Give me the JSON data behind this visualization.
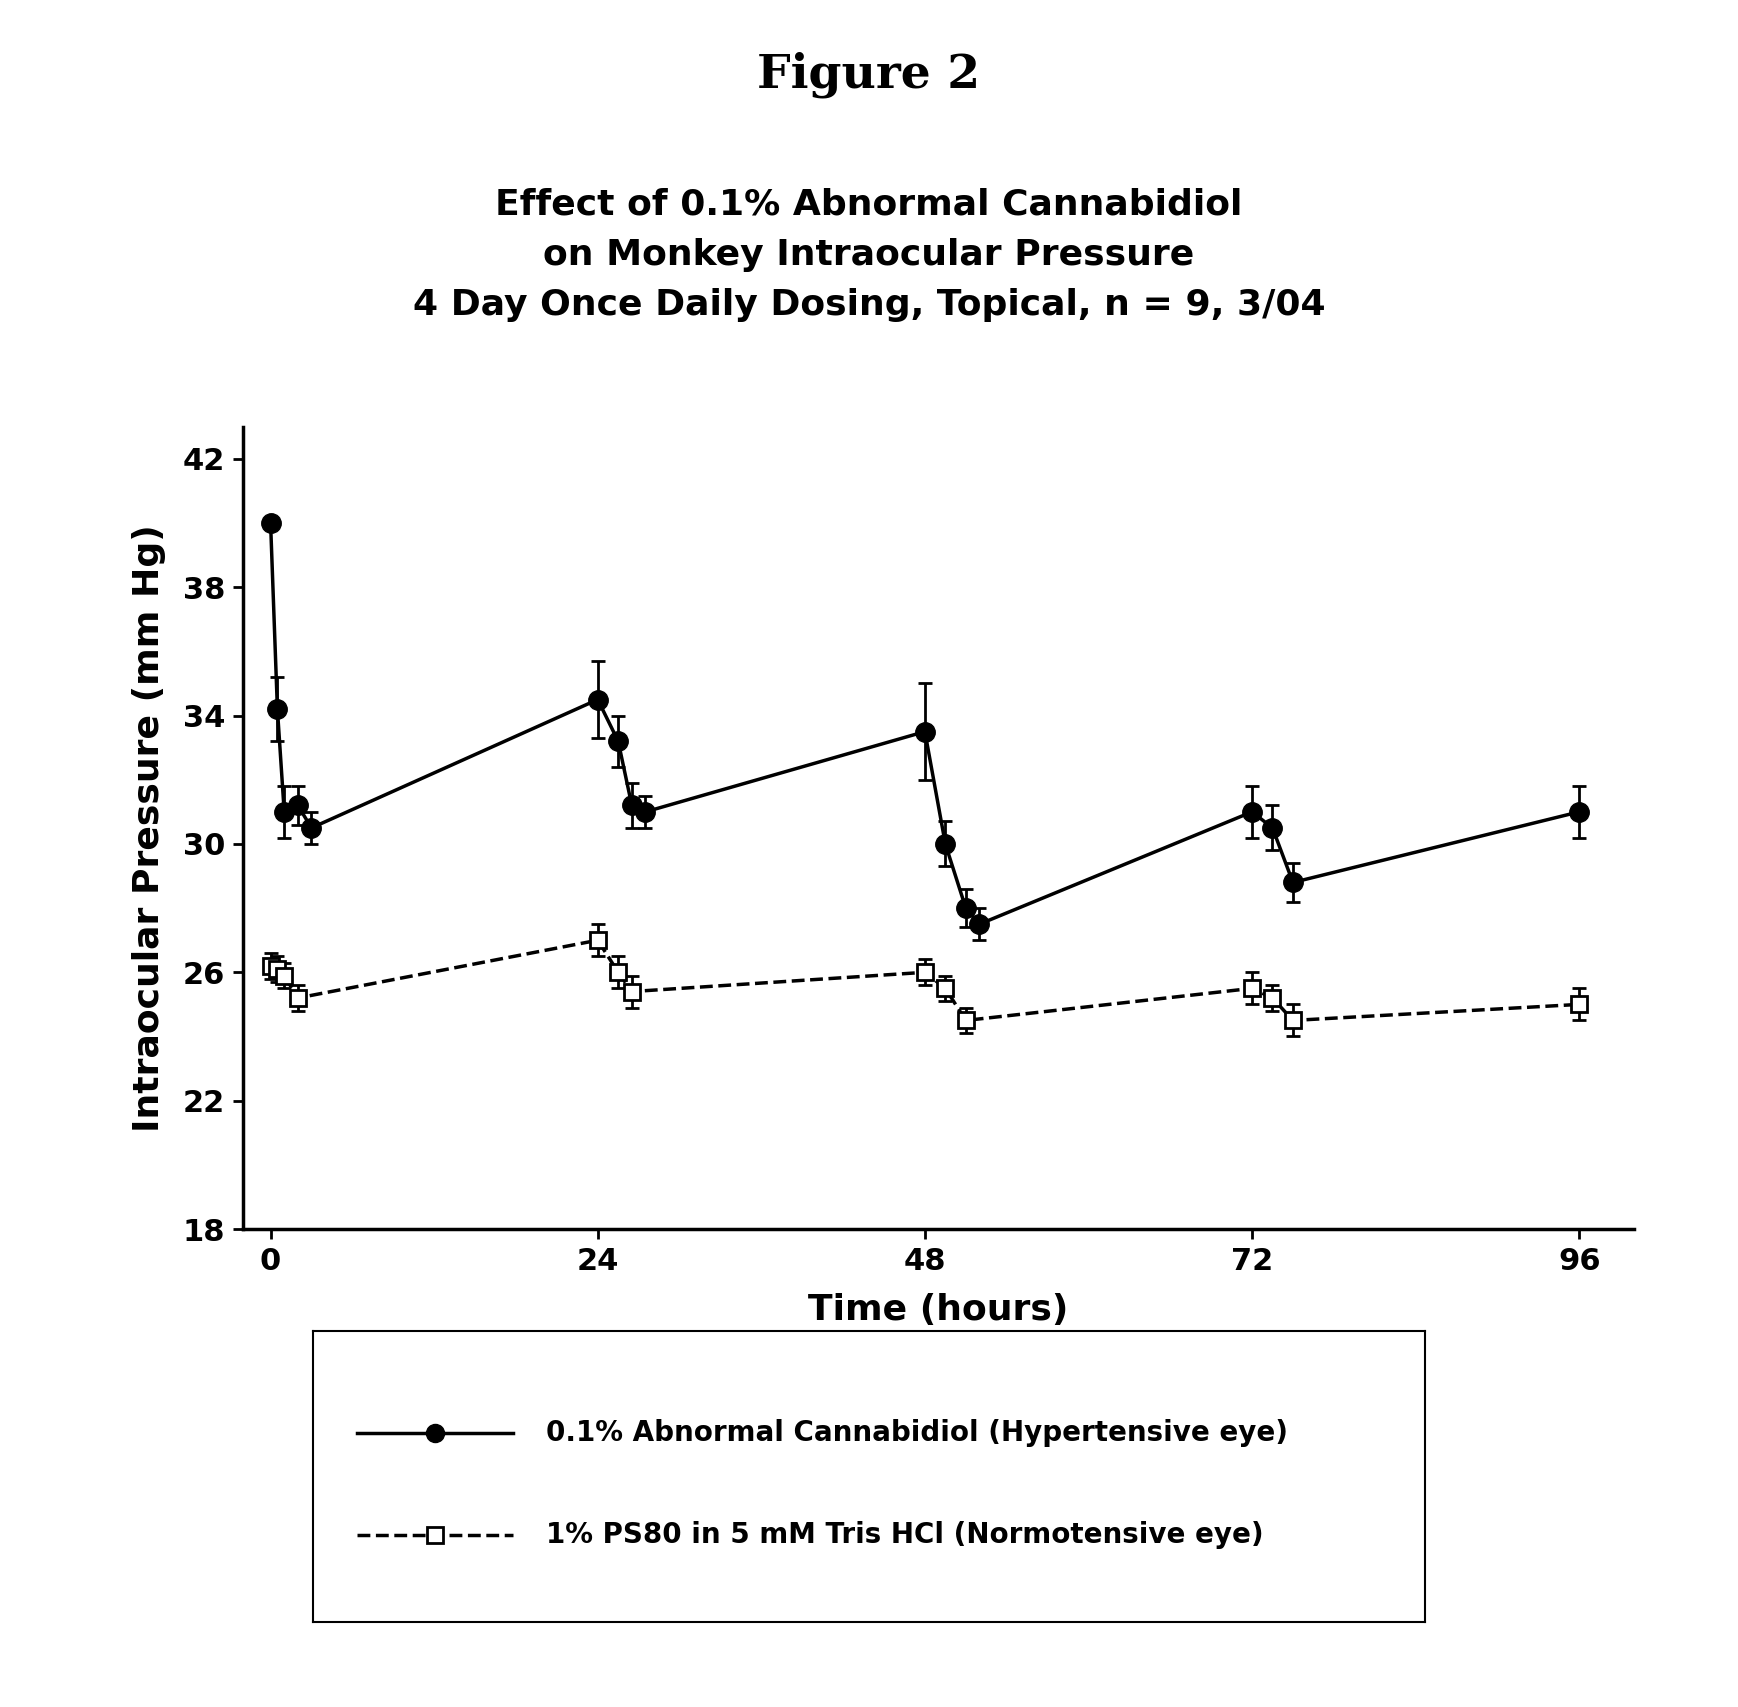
{
  "title_main": "Figure 2",
  "title_sub": "Effect of 0.1% Abnormal Cannabidiol\non Monkey Intraocular Pressure\n4 Day Once Daily Dosing, Topical, n = 9, 3/04",
  "xlabel": "Time (hours)",
  "ylabel": "Intraocular Pressure (mm Hg)",
  "ylim": [
    18,
    43
  ],
  "xlim": [
    -2,
    100
  ],
  "yticks": [
    18,
    22,
    26,
    30,
    34,
    38,
    42
  ],
  "xticks": [
    0,
    24,
    48,
    72,
    96
  ],
  "hyper_x": [
    0,
    0.5,
    1.0,
    2.0,
    3.0,
    24.0,
    25.5,
    26.5,
    27.5,
    48.0,
    49.5,
    51.0,
    52.0,
    72.0,
    73.5,
    75.0,
    96.0
  ],
  "hyper_y": [
    40.0,
    34.2,
    31.0,
    31.2,
    30.5,
    34.5,
    33.2,
    31.2,
    31.0,
    33.5,
    30.0,
    28.0,
    27.5,
    31.0,
    30.5,
    28.8,
    31.0
  ],
  "hyper_yerr": [
    0.0,
    1.0,
    0.8,
    0.6,
    0.5,
    1.2,
    0.8,
    0.7,
    0.5,
    1.5,
    0.7,
    0.6,
    0.5,
    0.8,
    0.7,
    0.6,
    0.8
  ],
  "normo_x": [
    0,
    0.5,
    1.0,
    2.0,
    24.0,
    25.5,
    26.5,
    48.0,
    49.5,
    51.0,
    72.0,
    73.5,
    75.0,
    96.0
  ],
  "normo_y": [
    26.2,
    26.1,
    25.9,
    25.2,
    27.0,
    26.0,
    25.4,
    26.0,
    25.5,
    24.5,
    25.5,
    25.2,
    24.5,
    25.0
  ],
  "normo_yerr": [
    0.4,
    0.4,
    0.4,
    0.4,
    0.5,
    0.5,
    0.5,
    0.4,
    0.4,
    0.4,
    0.5,
    0.4,
    0.5,
    0.5
  ],
  "legend1": "0.1% Abnormal Cannabidiol (Hypertensive eye)",
  "legend2": "1% PS80 in 5 mM Tris HCl (Normotensive eye)",
  "background_color": "#ffffff",
  "line_color": "#000000"
}
